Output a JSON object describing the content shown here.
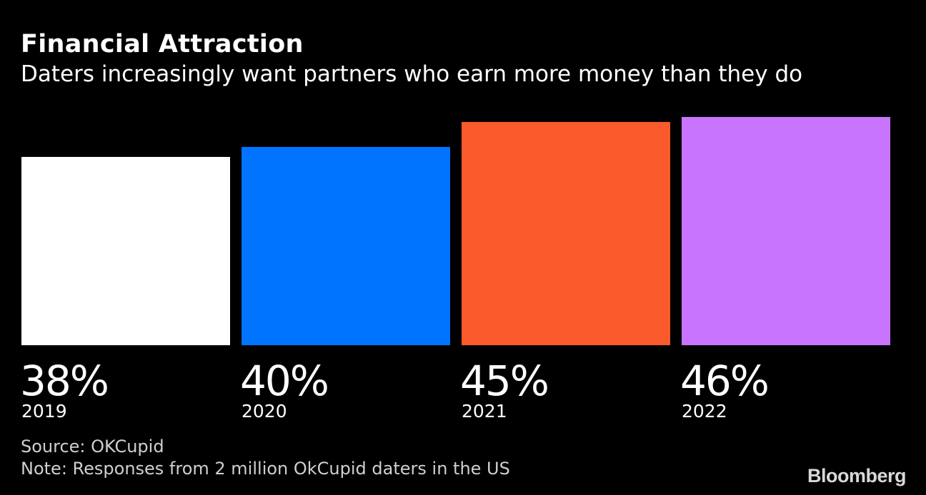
{
  "chart_data": {
    "type": "bar",
    "title": "Financial Attraction",
    "subtitle": "Daters increasingly want partners who earn more money than they do",
    "categories": [
      "2019",
      "2020",
      "2021",
      "2022"
    ],
    "values": [
      38,
      40,
      45,
      46
    ],
    "value_labels": [
      "38%",
      "40%",
      "45%",
      "46%"
    ],
    "colors": [
      "#ffffff",
      "#0073ff",
      "#fb5a2c",
      "#c874ff"
    ],
    "xlabel": "",
    "ylabel": "",
    "ylim": [
      0,
      46
    ],
    "grid": false
  },
  "footer": {
    "source": "Source: OKCupid",
    "note": "Note: Responses from 2 million OkCupid daters in the US",
    "brand": "Bloomberg"
  }
}
